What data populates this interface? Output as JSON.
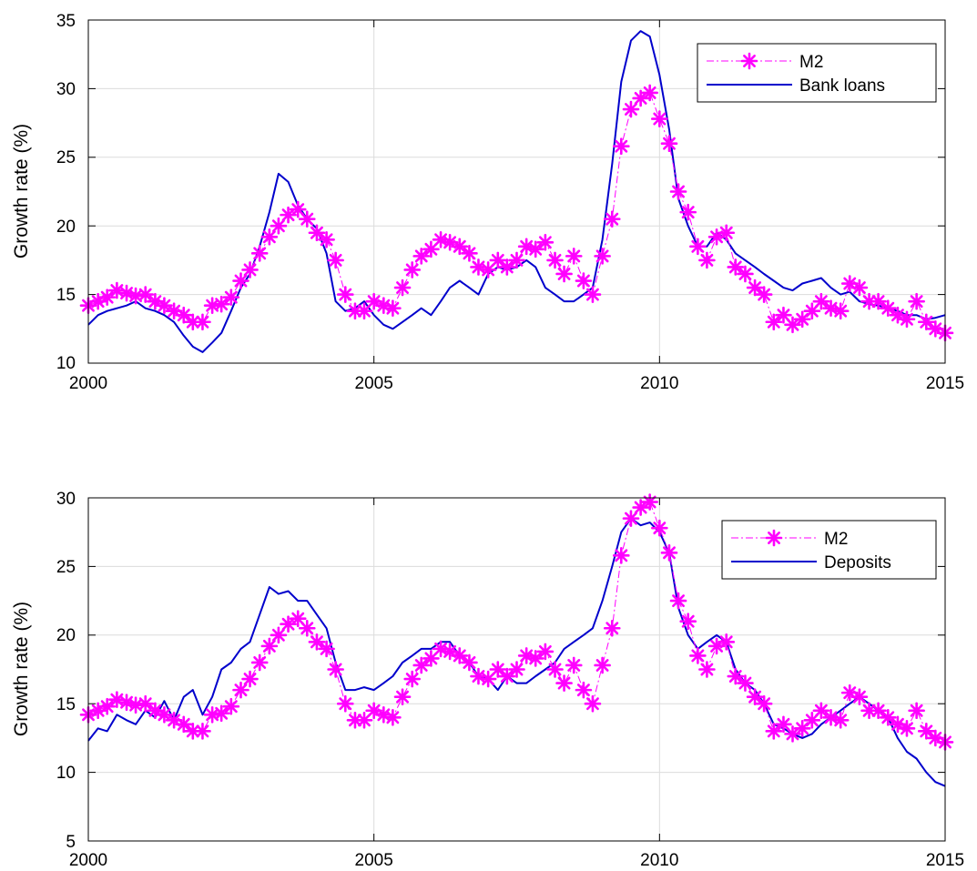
{
  "colors": {
    "m2": "#ff00ff",
    "series2": "#0000cc",
    "grid": "#dcdcdc",
    "axis": "#000000"
  },
  "chart_data": [
    {
      "type": "line",
      "ylabel": "Growth rate (%)",
      "xlim": [
        2000,
        2015
      ],
      "ylim": [
        10,
        35
      ],
      "xticks": [
        "2000",
        "2005",
        "2010",
        "2015"
      ],
      "yticks": [
        "10",
        "15",
        "20",
        "25",
        "30",
        "35"
      ],
      "grid": true,
      "legend_position": "top-right",
      "series": [
        {
          "name": "M2",
          "style": "dash-dot with asterisk markers",
          "x": [
            2000.0,
            2000.17,
            2000.33,
            2000.5,
            2000.67,
            2000.83,
            2001.0,
            2001.17,
            2001.33,
            2001.5,
            2001.67,
            2001.83,
            2002.0,
            2002.17,
            2002.33,
            2002.5,
            2002.67,
            2002.83,
            2003.0,
            2003.17,
            2003.33,
            2003.5,
            2003.67,
            2003.83,
            2004.0,
            2004.17,
            2004.33,
            2004.5,
            2004.67,
            2004.83,
            2005.0,
            2005.17,
            2005.33,
            2005.5,
            2005.67,
            2005.83,
            2006.0,
            2006.17,
            2006.33,
            2006.5,
            2006.67,
            2006.83,
            2007.0,
            2007.17,
            2007.33,
            2007.5,
            2007.67,
            2007.83,
            2008.0,
            2008.17,
            2008.33,
            2008.5,
            2008.67,
            2008.83,
            2009.0,
            2009.17,
            2009.33,
            2009.5,
            2009.67,
            2009.83,
            2010.0,
            2010.17,
            2010.33,
            2010.5,
            2010.67,
            2010.83,
            2011.0,
            2011.17,
            2011.33,
            2011.5,
            2011.67,
            2011.83,
            2012.0,
            2012.17,
            2012.33,
            2012.5,
            2012.67,
            2012.83,
            2013.0,
            2013.17,
            2013.33,
            2013.5,
            2013.67,
            2013.83,
            2014.0,
            2014.17,
            2014.33,
            2014.5,
            2014.67,
            2014.83,
            2015.0
          ],
          "values": [
            14.2,
            14.5,
            14.8,
            15.3,
            15.1,
            14.9,
            15.0,
            14.5,
            14.2,
            13.8,
            13.5,
            13.0,
            13.0,
            14.2,
            14.3,
            14.8,
            16.0,
            16.8,
            18.0,
            19.2,
            20.0,
            20.8,
            21.2,
            20.5,
            19.5,
            19.0,
            17.5,
            15.0,
            13.8,
            13.8,
            14.5,
            14.2,
            14.0,
            15.5,
            16.8,
            17.8,
            18.3,
            19.0,
            18.8,
            18.5,
            18.0,
            17.0,
            16.8,
            17.5,
            17.0,
            17.5,
            18.5,
            18.3,
            18.8,
            17.5,
            16.5,
            17.8,
            16.0,
            15.0,
            17.8,
            20.5,
            25.8,
            28.5,
            29.3,
            29.7,
            27.8,
            26.0,
            22.5,
            21.0,
            18.5,
            17.5,
            19.2,
            19.5,
            17.0,
            16.5,
            15.5,
            15.0,
            13.0,
            13.5,
            12.8,
            13.2,
            13.8,
            14.5,
            14.0,
            13.8,
            15.8,
            15.5,
            14.5,
            14.5,
            14.0,
            13.5,
            13.2,
            14.5,
            13.0,
            12.5,
            12.2
          ]
        },
        {
          "name": "Bank loans",
          "style": "solid",
          "x": [
            2000.0,
            2000.17,
            2000.33,
            2000.5,
            2000.67,
            2000.83,
            2001.0,
            2001.17,
            2001.33,
            2001.5,
            2001.67,
            2001.83,
            2002.0,
            2002.17,
            2002.33,
            2002.5,
            2002.67,
            2002.83,
            2003.0,
            2003.17,
            2003.33,
            2003.5,
            2003.67,
            2003.83,
            2004.0,
            2004.17,
            2004.33,
            2004.5,
            2004.67,
            2004.83,
            2005.0,
            2005.17,
            2005.33,
            2005.5,
            2005.67,
            2005.83,
            2006.0,
            2006.17,
            2006.33,
            2006.5,
            2006.67,
            2006.83,
            2007.0,
            2007.17,
            2007.33,
            2007.5,
            2007.67,
            2007.83,
            2008.0,
            2008.17,
            2008.33,
            2008.5,
            2008.67,
            2008.83,
            2009.0,
            2009.17,
            2009.33,
            2009.5,
            2009.67,
            2009.83,
            2010.0,
            2010.17,
            2010.33,
            2010.5,
            2010.67,
            2010.83,
            2011.0,
            2011.17,
            2011.33,
            2011.5,
            2011.67,
            2011.83,
            2012.0,
            2012.17,
            2012.33,
            2012.5,
            2012.67,
            2012.83,
            2013.0,
            2013.17,
            2013.33,
            2013.5,
            2013.67,
            2013.83,
            2014.0,
            2014.17,
            2014.33,
            2014.5,
            2014.67,
            2014.83,
            2015.0
          ],
          "values": [
            12.8,
            13.5,
            13.8,
            14.0,
            14.2,
            14.5,
            14.0,
            13.8,
            13.5,
            13.0,
            12.0,
            11.2,
            10.8,
            11.5,
            12.2,
            13.8,
            15.5,
            16.5,
            18.5,
            21.0,
            23.8,
            23.2,
            21.5,
            20.5,
            19.8,
            18.0,
            14.5,
            13.8,
            14.0,
            14.5,
            13.5,
            12.8,
            12.5,
            13.0,
            13.5,
            14.0,
            13.5,
            14.5,
            15.5,
            16.0,
            15.5,
            15.0,
            16.5,
            17.0,
            16.8,
            17.0,
            17.5,
            17.0,
            15.5,
            15.0,
            14.5,
            14.5,
            15.0,
            15.5,
            19.0,
            24.5,
            30.5,
            33.5,
            34.2,
            33.8,
            31.0,
            27.0,
            22.0,
            20.0,
            18.5,
            18.5,
            19.5,
            19.0,
            18.0,
            17.5,
            17.0,
            16.5,
            16.0,
            15.5,
            15.3,
            15.8,
            16.0,
            16.2,
            15.5,
            15.0,
            15.2,
            14.5,
            14.3,
            14.2,
            14.0,
            13.8,
            13.5,
            13.5,
            13.2,
            13.3,
            13.5
          ]
        }
      ]
    },
    {
      "type": "line",
      "ylabel": "Growth rate (%)",
      "xlim": [
        2000,
        2015
      ],
      "ylim": [
        5,
        30
      ],
      "xticks": [
        "2000",
        "2005",
        "2010",
        "2015"
      ],
      "yticks": [
        "5",
        "10",
        "15",
        "20",
        "25",
        "30"
      ],
      "grid": true,
      "legend_position": "top-right",
      "series": [
        {
          "name": "M2",
          "style": "dash-dot with asterisk markers",
          "x": [
            2000.0,
            2000.17,
            2000.33,
            2000.5,
            2000.67,
            2000.83,
            2001.0,
            2001.17,
            2001.33,
            2001.5,
            2001.67,
            2001.83,
            2002.0,
            2002.17,
            2002.33,
            2002.5,
            2002.67,
            2002.83,
            2003.0,
            2003.17,
            2003.33,
            2003.5,
            2003.67,
            2003.83,
            2004.0,
            2004.17,
            2004.33,
            2004.5,
            2004.67,
            2004.83,
            2005.0,
            2005.17,
            2005.33,
            2005.5,
            2005.67,
            2005.83,
            2006.0,
            2006.17,
            2006.33,
            2006.5,
            2006.67,
            2006.83,
            2007.0,
            2007.17,
            2007.33,
            2007.5,
            2007.67,
            2007.83,
            2008.0,
            2008.17,
            2008.33,
            2008.5,
            2008.67,
            2008.83,
            2009.0,
            2009.17,
            2009.33,
            2009.5,
            2009.67,
            2009.83,
            2010.0,
            2010.17,
            2010.33,
            2010.5,
            2010.67,
            2010.83,
            2011.0,
            2011.17,
            2011.33,
            2011.5,
            2011.67,
            2011.83,
            2012.0,
            2012.17,
            2012.33,
            2012.5,
            2012.67,
            2012.83,
            2013.0,
            2013.17,
            2013.33,
            2013.5,
            2013.67,
            2013.83,
            2014.0,
            2014.17,
            2014.33,
            2014.5,
            2014.67,
            2014.83,
            2015.0
          ],
          "values": [
            14.2,
            14.5,
            14.8,
            15.3,
            15.1,
            14.9,
            15.0,
            14.5,
            14.2,
            13.8,
            13.5,
            13.0,
            13.0,
            14.2,
            14.3,
            14.8,
            16.0,
            16.8,
            18.0,
            19.2,
            20.0,
            20.8,
            21.2,
            20.5,
            19.5,
            19.0,
            17.5,
            15.0,
            13.8,
            13.8,
            14.5,
            14.2,
            14.0,
            15.5,
            16.8,
            17.8,
            18.3,
            19.0,
            18.8,
            18.5,
            18.0,
            17.0,
            16.8,
            17.5,
            17.0,
            17.5,
            18.5,
            18.3,
            18.8,
            17.5,
            16.5,
            17.8,
            16.0,
            15.0,
            17.8,
            20.5,
            25.8,
            28.5,
            29.3,
            29.7,
            27.8,
            26.0,
            22.5,
            21.0,
            18.5,
            17.5,
            19.2,
            19.5,
            17.0,
            16.5,
            15.5,
            15.0,
            13.0,
            13.5,
            12.8,
            13.2,
            13.8,
            14.5,
            14.0,
            13.8,
            15.8,
            15.5,
            14.5,
            14.5,
            14.0,
            13.5,
            13.2,
            14.5,
            13.0,
            12.5,
            12.2
          ]
        },
        {
          "name": "Deposits",
          "style": "solid",
          "x": [
            2000.0,
            2000.17,
            2000.33,
            2000.5,
            2000.67,
            2000.83,
            2001.0,
            2001.17,
            2001.33,
            2001.5,
            2001.67,
            2001.83,
            2002.0,
            2002.17,
            2002.33,
            2002.5,
            2002.67,
            2002.83,
            2003.0,
            2003.17,
            2003.33,
            2003.5,
            2003.67,
            2003.83,
            2004.0,
            2004.17,
            2004.33,
            2004.5,
            2004.67,
            2004.83,
            2005.0,
            2005.17,
            2005.33,
            2005.5,
            2005.67,
            2005.83,
            2006.0,
            2006.17,
            2006.33,
            2006.5,
            2006.67,
            2006.83,
            2007.0,
            2007.17,
            2007.33,
            2007.5,
            2007.67,
            2007.83,
            2008.0,
            2008.17,
            2008.33,
            2008.5,
            2008.67,
            2008.83,
            2009.0,
            2009.17,
            2009.33,
            2009.5,
            2009.67,
            2009.83,
            2010.0,
            2010.17,
            2010.33,
            2010.5,
            2010.67,
            2010.83,
            2011.0,
            2011.17,
            2011.33,
            2011.5,
            2011.67,
            2011.83,
            2012.0,
            2012.17,
            2012.33,
            2012.5,
            2012.67,
            2012.83,
            2013.0,
            2013.17,
            2013.33,
            2013.5,
            2013.67,
            2013.83,
            2014.0,
            2014.17,
            2014.33,
            2014.5,
            2014.67,
            2014.83,
            2015.0
          ],
          "values": [
            12.3,
            13.2,
            13.0,
            14.2,
            13.8,
            13.5,
            14.5,
            14.0,
            15.2,
            13.8,
            15.5,
            16.0,
            14.2,
            15.5,
            17.5,
            18.0,
            19.0,
            19.5,
            21.5,
            23.5,
            23.0,
            23.2,
            22.5,
            22.5,
            21.5,
            20.5,
            18.0,
            16.0,
            16.0,
            16.2,
            16.0,
            16.5,
            17.0,
            18.0,
            18.5,
            19.0,
            19.0,
            19.5,
            19.5,
            18.5,
            18.0,
            17.0,
            16.8,
            16.0,
            17.0,
            16.5,
            16.5,
            17.0,
            17.5,
            18.0,
            19.0,
            19.5,
            20.0,
            20.5,
            22.5,
            25.0,
            27.5,
            28.5,
            28.0,
            28.2,
            27.5,
            26.0,
            22.0,
            20.0,
            19.0,
            19.5,
            20.0,
            19.5,
            17.5,
            16.5,
            16.0,
            15.0,
            13.5,
            13.2,
            12.8,
            12.5,
            12.8,
            13.5,
            14.0,
            14.5,
            15.0,
            15.5,
            15.0,
            14.5,
            14.0,
            12.5,
            11.5,
            11.0,
            10.0,
            9.3,
            9.0
          ]
        }
      ]
    }
  ]
}
